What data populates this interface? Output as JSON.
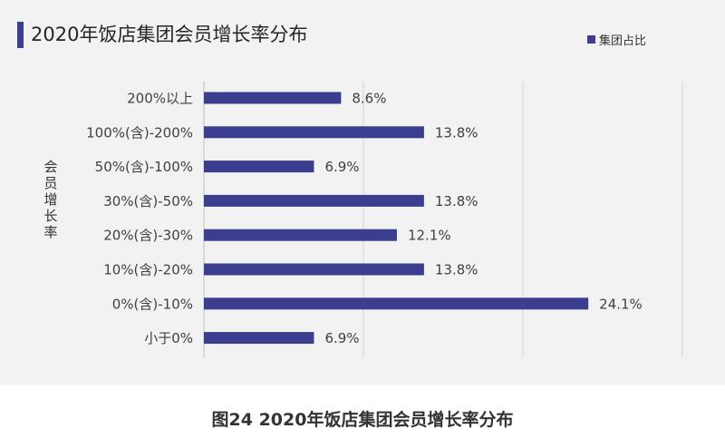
{
  "colors": {
    "bar": "#3b3d8f",
    "grid": "#d4d4d4",
    "panel": "#f2f2f2"
  },
  "caption": "图24  2020年饭店集团会员增长率分布",
  "chart_data": {
    "type": "bar",
    "orientation": "horizontal",
    "title": "2020年饭店集团会员增长率分布",
    "ylabel": "会员增长率",
    "xlabel": "",
    "categories": [
      "200%以上",
      "100%(含)-200%",
      "50%(含)-100%",
      "30%(含)-50%",
      "20%(含)-30%",
      "10%(含)-20%",
      "0%(含)-10%",
      "小于0%"
    ],
    "series": [
      {
        "name": "集团占比",
        "values": [
          8.6,
          13.8,
          6.9,
          13.8,
          12.1,
          13.8,
          24.1,
          6.9
        ],
        "labels": [
          "8.6%",
          "13.8%",
          "6.9%",
          "13.8%",
          "12.1%",
          "13.8%",
          "24.1%",
          "6.9%"
        ]
      }
    ],
    "xlim": [
      0,
      30
    ],
    "x_ticks_labeled": false,
    "grid": true,
    "legend_position": "top-right"
  }
}
